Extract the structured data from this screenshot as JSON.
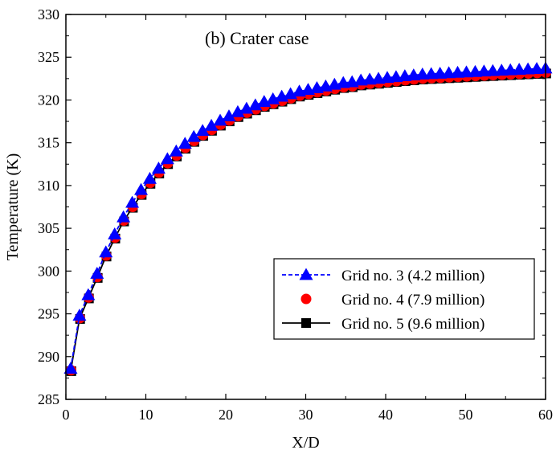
{
  "chart_data": {
    "type": "line",
    "title": "(b) Crater case",
    "xlabel": "X/D",
    "ylabel": "Temperature (K)",
    "xlim": [
      0,
      60
    ],
    "ylim": [
      285,
      330
    ],
    "xticks": [
      0,
      10,
      20,
      30,
      40,
      50,
      60
    ],
    "yticks": [
      285,
      290,
      295,
      300,
      305,
      310,
      315,
      320,
      325,
      330
    ],
    "grid": false,
    "legend_position": "lower-right",
    "x": [
      0.6,
      1.7,
      2.8,
      3.9,
      5.0,
      6.1,
      7.2,
      8.3,
      9.4,
      10.5,
      11.6,
      12.7,
      13.8,
      14.9,
      16.0,
      17.1,
      18.2,
      19.3,
      20.4,
      21.5,
      22.6,
      23.7,
      24.8,
      25.9,
      27.0,
      28.1,
      29.2,
      30.3,
      31.4,
      32.5,
      33.6,
      34.7,
      35.8,
      36.9,
      38.0,
      39.1,
      40.2,
      41.3,
      42.4,
      43.5,
      44.6,
      45.7,
      46.8,
      47.9,
      49.0,
      50.1,
      51.2,
      52.3,
      53.4,
      54.5,
      55.6,
      56.7,
      57.8,
      58.9,
      60.0
    ],
    "series": [
      {
        "name": "Grid no. 3 (4.2 million)",
        "color": "#0000ff",
        "marker": "triangle",
        "line": "dashed",
        "values": [
          288.6,
          294.8,
          297.2,
          299.7,
          302.2,
          304.3,
          306.3,
          308.0,
          309.5,
          310.8,
          312.0,
          313.1,
          314.0,
          314.9,
          315.7,
          316.4,
          317.0,
          317.6,
          318.1,
          318.6,
          319.0,
          319.4,
          319.8,
          320.1,
          320.4,
          320.7,
          321.0,
          321.2,
          321.4,
          321.6,
          321.8,
          322.0,
          322.1,
          322.3,
          322.4,
          322.5,
          322.6,
          322.7,
          322.8,
          322.9,
          323.0,
          323.05,
          323.1,
          323.15,
          323.2,
          323.25,
          323.3,
          323.35,
          323.4,
          323.45,
          323.5,
          323.55,
          323.6,
          323.65,
          323.7
        ]
      },
      {
        "name": "Grid no. 4 (7.9 million)",
        "color": "#ff0000",
        "marker": "circle",
        "line": "none",
        "values": [
          288.4,
          294.5,
          296.9,
          299.3,
          301.8,
          303.9,
          305.9,
          307.5,
          309.0,
          310.3,
          311.5,
          312.6,
          313.5,
          314.4,
          315.2,
          315.9,
          316.5,
          317.1,
          317.6,
          318.1,
          318.5,
          318.9,
          319.3,
          319.6,
          319.9,
          320.2,
          320.5,
          320.7,
          320.9,
          321.1,
          321.3,
          321.5,
          321.6,
          321.8,
          321.9,
          322.0,
          322.1,
          322.2,
          322.3,
          322.4,
          322.5,
          322.55,
          322.6,
          322.65,
          322.7,
          322.75,
          322.8,
          322.85,
          322.9,
          322.95,
          323.0,
          323.05,
          323.1,
          323.15,
          323.2
        ]
      },
      {
        "name": "Grid no. 5 (9.6 million)",
        "color": "#000000",
        "marker": "square",
        "line": "solid",
        "values": [
          288.3,
          294.4,
          296.8,
          299.2,
          301.7,
          303.8,
          305.8,
          307.4,
          308.9,
          310.2,
          311.4,
          312.5,
          313.4,
          314.3,
          315.1,
          315.8,
          316.4,
          317.0,
          317.5,
          318.0,
          318.4,
          318.8,
          319.2,
          319.5,
          319.8,
          320.1,
          320.4,
          320.6,
          320.8,
          321.0,
          321.2,
          321.4,
          321.5,
          321.7,
          321.8,
          321.9,
          322.0,
          322.1,
          322.2,
          322.3,
          322.4,
          322.45,
          322.5,
          322.55,
          322.6,
          322.65,
          322.7,
          322.75,
          322.8,
          322.85,
          322.9,
          322.95,
          323.0,
          323.05,
          323.1
        ]
      }
    ]
  }
}
